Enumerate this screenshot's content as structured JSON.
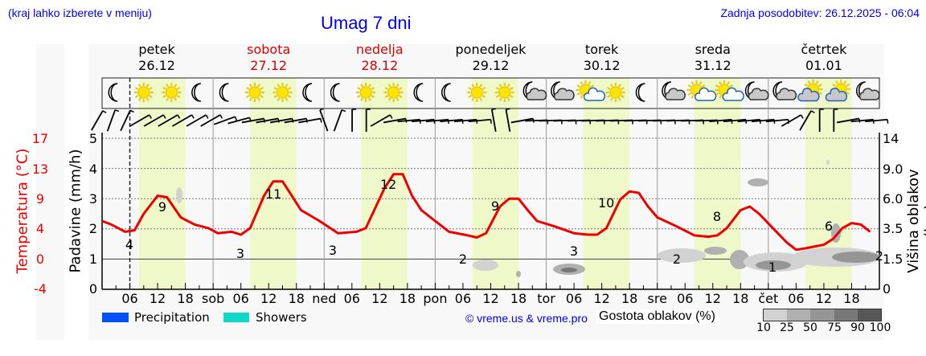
{
  "header": {
    "region_hint": "(kraj lahko izberete v meniju)",
    "title": "Umag 7 dni",
    "last_update": "Zadnja posodobitev: 26.12.2025 - 06:04"
  },
  "days": [
    {
      "name": "petek",
      "date": "26.12",
      "color": "#000000"
    },
    {
      "name": "sobota",
      "date": "27.12",
      "color": "#dd0000"
    },
    {
      "name": "nedelja",
      "date": "28.12",
      "color": "#dd0000"
    },
    {
      "name": "ponedeljek",
      "date": "29.12",
      "color": "#000000"
    },
    {
      "name": "torek",
      "date": "30.12",
      "color": "#000000"
    },
    {
      "name": "sreda",
      "date": "31.12",
      "color": "#000000"
    },
    {
      "name": "četrtek",
      "date": "01.01",
      "color": "#000000"
    }
  ],
  "icons": [
    "moon",
    "sun",
    "sun",
    "moon",
    "moon",
    "sun",
    "sun",
    "moon",
    "moon",
    "sun",
    "sun",
    "moon",
    "moon",
    "sun",
    "sun",
    "moon-cloud",
    "moon-cloud",
    "sun-cloud",
    "sun",
    "moon",
    "moon-cloud",
    "sun-cloud",
    "sun-cloud",
    "moon-cloud",
    "moon-cloud",
    "cloud-sun",
    "cloud-sun",
    "moon-cloud"
  ],
  "axes": {
    "left_temp_label": "Temperatura (°C)",
    "left_temp_ticks": [
      "17",
      "13",
      "9",
      "4",
      "0",
      "-4"
    ],
    "left_precip_label": "Padavine (mm/h)",
    "left_precip_ticks": [
      "5",
      "4",
      "3",
      "2",
      "1",
      "0"
    ],
    "right_label": "Višina oblakov (km)",
    "right_ticks": [
      "14",
      "9.0",
      "6.0",
      "3.5",
      "1.5",
      "0"
    ],
    "x_ticks": [
      "06",
      "12",
      "18",
      "sob",
      "06",
      "12",
      "18",
      "ned",
      "06",
      "12",
      "18",
      "pon",
      "06",
      "12",
      "18",
      "tor",
      "06",
      "12",
      "18",
      "sre",
      "06",
      "12",
      "18",
      "čet",
      "06",
      "12",
      "18"
    ]
  },
  "legend": {
    "precipitation": "Precipitation",
    "precipitation_color": "#0050ff",
    "showers": "Showers",
    "showers_color": "#10d8c8",
    "copyright": "© vreme.us & vreme.pro",
    "cloud_density_label": "Gostota oblakov (%)",
    "cloud_density_ticks": [
      "10",
      "25",
      "50",
      "75",
      "90",
      "100"
    ],
    "cloud_density_colors": [
      "#d2d2d2",
      "#b0b0b0",
      "#969696",
      "#787878",
      "#585858"
    ]
  },
  "chart_data": {
    "type": "line",
    "title": "Umag 7 dni",
    "xlabel": "",
    "ylabel": "Temperatura (°C)",
    "ylim": [
      -4,
      17
    ],
    "x": [
      "26.12 00",
      "26.12 06",
      "26.12 13",
      "27.12 06",
      "27.12 13",
      "28.12 06",
      "28.12 13",
      "29.12 06",
      "29.12 13",
      "30.12 06",
      "30.12 13",
      "31.12 06",
      "31.12 13",
      "01.01 01",
      "01.01 13",
      "01.01 23"
    ],
    "series": [
      {
        "name": "Temperatura",
        "color": "#ee0000",
        "values": [
          5.5,
          4,
          9,
          3,
          11,
          3,
          12,
          2,
          9,
          3,
          10,
          2,
          8,
          1,
          6,
          2
        ]
      }
    ],
    "annotations": [
      {
        "x": "26.12 06",
        "label": "4"
      },
      {
        "x": "26.12 13",
        "label": "9"
      },
      {
        "x": "27.12 06",
        "label": "3"
      },
      {
        "x": "27.12 13",
        "label": "11"
      },
      {
        "x": "28.12 06",
        "label": "3"
      },
      {
        "x": "28.12 13",
        "label": "12"
      },
      {
        "x": "29.12 06",
        "label": "2"
      },
      {
        "x": "29.12 13",
        "label": "9"
      },
      {
        "x": "30.12 06",
        "label": "3"
      },
      {
        "x": "30.12 13",
        "label": "10"
      },
      {
        "x": "31.12 06",
        "label": "2"
      },
      {
        "x": "31.12 13",
        "label": "8"
      },
      {
        "x": "01.01 01",
        "label": "1"
      },
      {
        "x": "01.01 13",
        "label": "6"
      },
      {
        "x": "01.01 23",
        "label": "2"
      }
    ],
    "precipitation_mm_h": [],
    "grid": true,
    "legend_position": "bottom"
  }
}
